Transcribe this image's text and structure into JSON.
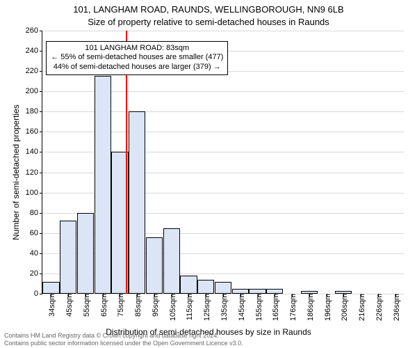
{
  "chart": {
    "type": "histogram",
    "title_line1": "101, LANGHAM ROAD, RAUNDS, WELLINGBOROUGH, NN9 6LB",
    "title_line2": "Size of property relative to semi-detached houses in Raunds",
    "title_fontsize": 13,
    "ylabel": "Number of semi-detached properties",
    "xlabel": "Distribution of semi-detached houses by size in Raunds",
    "label_fontsize": 12,
    "tick_fontsize": 11,
    "background_color": "#ffffff",
    "grid_color": "#d9d9d9",
    "bar_fill": "#dbe5f5",
    "bar_border": "#000000",
    "refline_color": "#ff0000",
    "text_color": "#000000",
    "ylim": [
      0,
      260
    ],
    "ytick_step": 20,
    "x_categories": [
      "34sqm",
      "45sqm",
      "55sqm",
      "65sqm",
      "75sqm",
      "85sqm",
      "95sqm",
      "105sqm",
      "115sqm",
      "125sqm",
      "135sqm",
      "145sqm",
      "155sqm",
      "165sqm",
      "176sqm",
      "186sqm",
      "196sqm",
      "206sqm",
      "216sqm",
      "226sqm",
      "236sqm"
    ],
    "values": [
      12,
      72,
      80,
      215,
      140,
      180,
      56,
      65,
      18,
      14,
      12,
      5,
      5,
      5,
      0,
      3,
      0,
      3,
      0,
      0,
      0
    ],
    "bar_width": 0.98,
    "reference_index": 4.85,
    "annotation": {
      "lines": [
        "101 LANGHAM ROAD: 83sqm",
        "← 55% of semi-detached houses are smaller (477)",
        "44% of semi-detached houses are larger (379) →"
      ],
      "top_value": 250,
      "center_index": 5.5,
      "border_color": "#000000",
      "background": "#ffffff",
      "fontsize": 11
    }
  },
  "footnote": {
    "line1": "Contains HM Land Registry data © Crown copyright and database right 2024.",
    "line2": "Contains public sector information licensed under the Open Government Licence v3.0.",
    "color": "#666666",
    "fontsize": 9
  }
}
